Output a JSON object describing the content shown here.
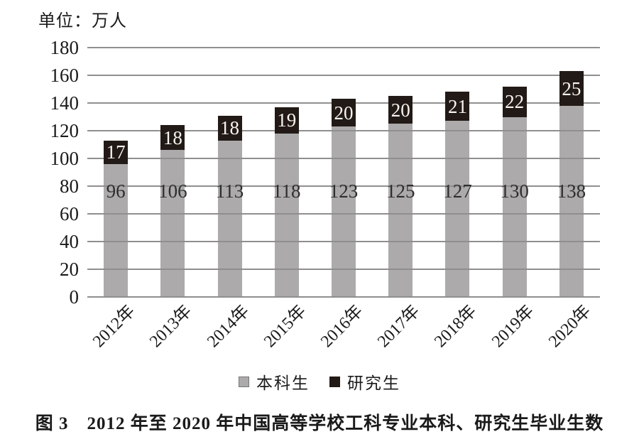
{
  "figure": {
    "unit_label": "单位：万人",
    "caption": "图 3　2012 年至 2020 年中国高等学校工科专业本科、研究生毕业生数"
  },
  "chart_data": {
    "type": "bar",
    "stacked": true,
    "title": "2012年至2020年中国高等学校工科专业本科、研究生毕业生数",
    "unit": "万人",
    "categories": [
      "2012年",
      "2013年",
      "2014年",
      "2015年",
      "2016年",
      "2017年",
      "2018年",
      "2019年",
      "2020年"
    ],
    "series": [
      {
        "name": "本科生",
        "color": "#acaaaa",
        "label_color": "#2e2e2e",
        "values": [
          96,
          106,
          113,
          118,
          123,
          125,
          127,
          130,
          138
        ]
      },
      {
        "name": "研究生",
        "color": "#221a16",
        "label_color": "#f7f4ee",
        "values": [
          17,
          18,
          18,
          19,
          20,
          20,
          21,
          22,
          25
        ]
      }
    ],
    "ylim": [
      0,
      180
    ],
    "ytick_step": 20,
    "yticks": [
      0,
      20,
      40,
      60,
      80,
      100,
      120,
      140,
      160,
      180
    ],
    "grid": true,
    "gridline_color": "#8f8f8f",
    "legend_position": "bottom",
    "bar_labels": true
  },
  "colors": {
    "background": "#ffffff",
    "text": "#1a1a1a",
    "grid": "#8f8f8f",
    "undergrad_bar": "#acaaaa",
    "grad_bar": "#221a16"
  }
}
